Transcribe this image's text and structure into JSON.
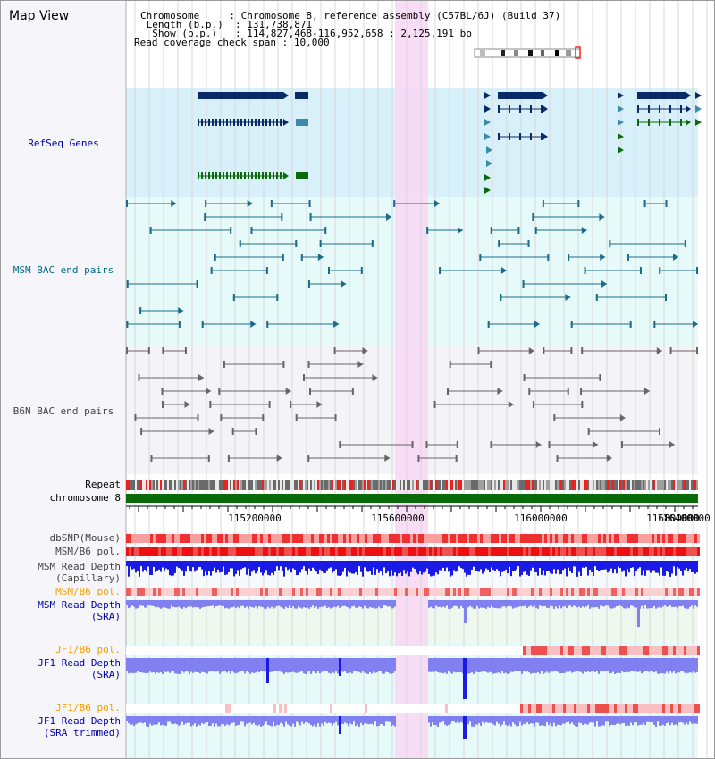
{
  "title": "Map View",
  "header": {
    "chromosome_label": "Chromosome",
    "chromosome_value": "Chromosome 8, reference assembly (C57BL/6J) (Build 37)",
    "length_label": "Length (b.p.)",
    "length_value": "131,738,871",
    "show_label": "Show (b.p.)",
    "show_value": "114,827,468-116,952,658 : 2,125,191 bp",
    "span_label": "Read coverage check span",
    "span_value": "10,000"
  },
  "tracks": {
    "refseq": "RefSeq Genes",
    "msm_bac": "MSM BAC end pairs",
    "b6n_bac": "B6N BAC end pairs",
    "repeat": "Repeat",
    "chromosome": "chromosome 8",
    "dbsnp": "dbSNP(Mouse)",
    "msm_b6_pol_1": "MSM/B6 pol.",
    "msm_read_depth_cap_1": "MSM Read Depth",
    "msm_read_depth_cap_2": "(Capillary)",
    "msm_b6_pol_2": "MSM/B6 pol.",
    "msm_read_depth_sra_1": "MSM Read Depth",
    "msm_read_depth_sra_2": "(SRA)",
    "jf1_b6_pol_1": "JF1/B6 pol.",
    "jf1_read_depth_1": "JF1 Read Depth",
    "jf1_read_depth_2": "(SRA)",
    "jf1_b6_pol_2": "JF1/B6 pol.",
    "jf1_read_depth_trim_1": "JF1 Read Depth",
    "jf1_read_depth_trim_2": "(SRA trimmed)"
  },
  "axis_ticks": [
    "115200000",
    "115600000",
    "116000000",
    "116400000",
    "116800000"
  ],
  "colors": {
    "gene_dark": "#0a2a66",
    "gene_mid": "#3a8aae",
    "gene_green": "#0a6a0a",
    "msm_pair": "#1a6a8a",
    "b6n_pair": "#666666",
    "refseq_bg": "#d8f0fa",
    "msm_bg": "#e6fafa",
    "highlight": "#f8d8f4",
    "chromosome_bar": "#0a6a0a",
    "snp_red": "#ee4444",
    "depth_blue": "#1a1ae6",
    "depth_light": "#8080f0",
    "label_blue": "#0000aa",
    "label_teal": "#006a8a",
    "label_orange": "#f0a000"
  }
}
